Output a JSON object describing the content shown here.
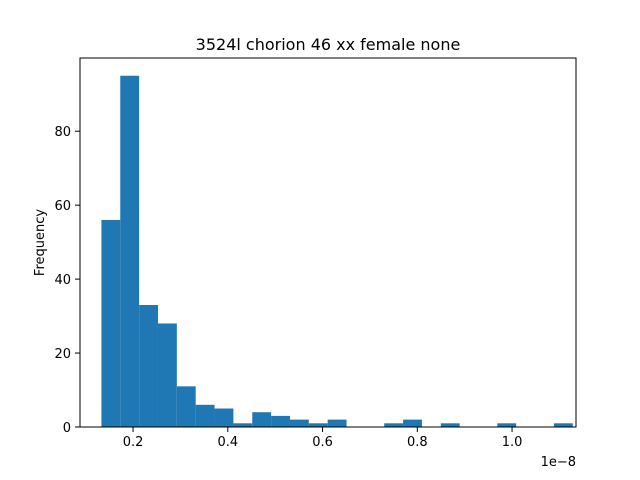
{
  "chart_data": {
    "type": "bar",
    "title": "3524l chorion 46 xx female none",
    "xlabel": "",
    "ylabel": "Frequency",
    "offset_text": "1e−8",
    "xlim": [
      0.088,
      1.135
    ],
    "ylim": [
      0,
      99.8
    ],
    "x_ticks": [
      {
        "value": 0.2,
        "label": "0.2"
      },
      {
        "value": 0.4,
        "label": "0.4"
      },
      {
        "value": 0.6,
        "label": "0.6"
      },
      {
        "value": 0.8,
        "label": "0.8"
      },
      {
        "value": 1.0,
        "label": "1.0"
      }
    ],
    "y_ticks": [
      {
        "value": 0,
        "label": "0"
      },
      {
        "value": 20,
        "label": "20"
      },
      {
        "value": 40,
        "label": "40"
      },
      {
        "value": 60,
        "label": "60"
      },
      {
        "value": 80,
        "label": "80"
      }
    ],
    "bin_edges": [
      0.1332,
      0.173,
      0.2128,
      0.2526,
      0.2924,
      0.3322,
      0.372,
      0.4118,
      0.4516,
      0.4914,
      0.5312,
      0.571,
      0.6108,
      0.6506,
      0.6904,
      0.7302,
      0.77,
      0.8098,
      0.8496,
      0.8894,
      0.9292,
      0.969,
      1.0088,
      1.0486,
      1.0884,
      1.1282
    ],
    "counts": [
      56,
      95,
      33,
      28,
      11,
      6,
      5,
      1,
      4,
      3,
      2,
      1,
      2,
      0,
      0,
      1,
      2,
      0,
      1,
      0,
      0,
      1,
      0,
      0,
      1
    ],
    "bar_color": "#1f77b4",
    "grid": false
  }
}
